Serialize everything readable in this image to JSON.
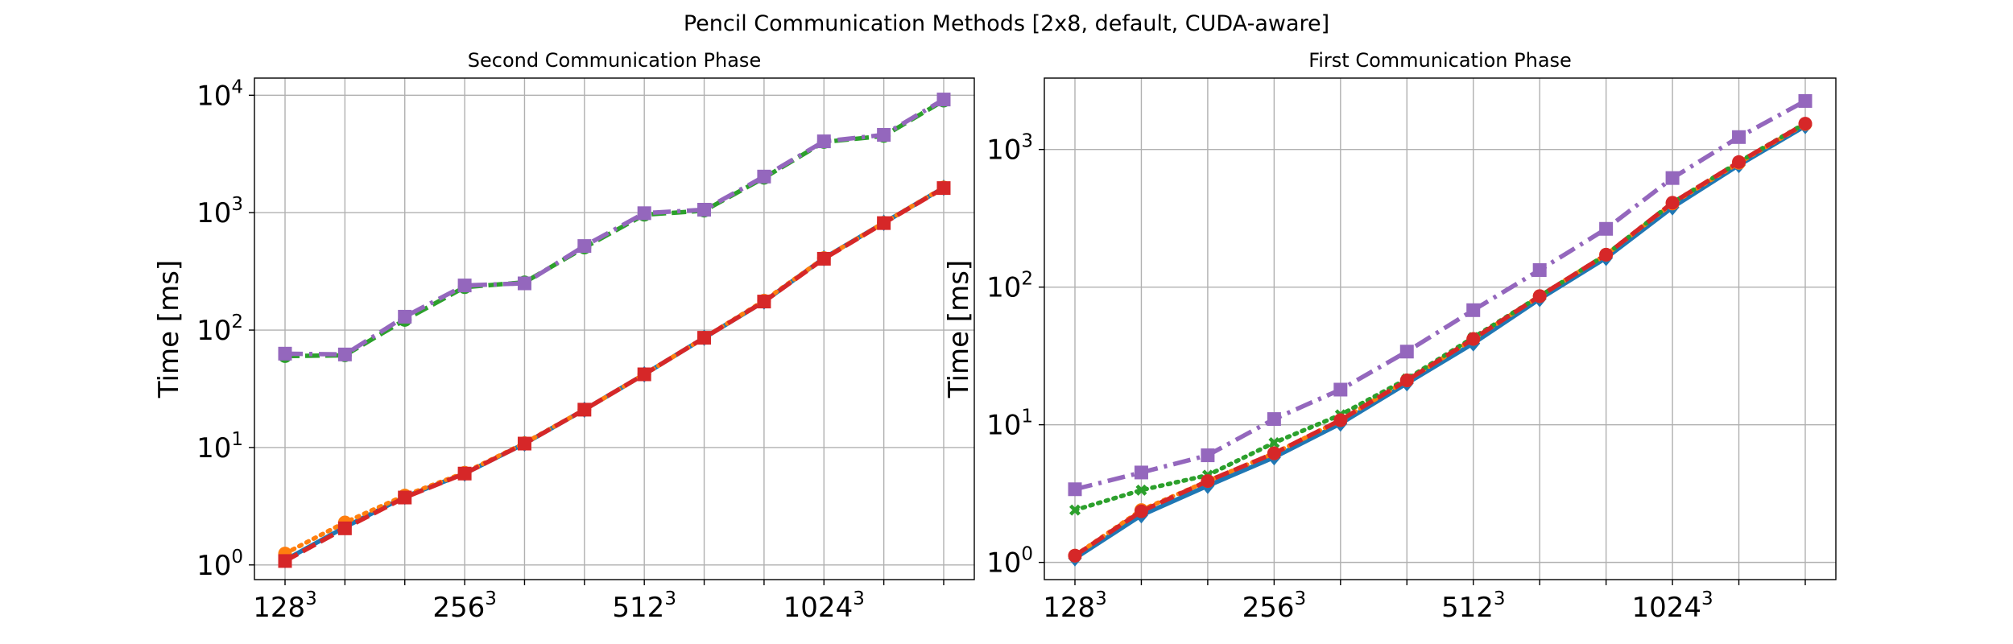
{
  "figure": {
    "title": "Pencil Communication Methods [2x8, default, CUDA-aware]"
  },
  "chart_data": [
    {
      "type": "line",
      "title": "Second Communication Phase",
      "xlabel": "",
      "ylabel": "Time [ms]",
      "yscale": "log",
      "ylim": [
        0.75,
        14000
      ],
      "grid": true,
      "x_index": [
        0,
        1,
        2,
        3,
        4,
        5,
        6,
        7,
        8,
        9,
        10,
        11
      ],
      "xticks": [
        {
          "index": 0,
          "base": "128",
          "exp": "3"
        },
        {
          "index": 3,
          "base": "256",
          "exp": "3"
        },
        {
          "index": 6,
          "base": "512",
          "exp": "3"
        },
        {
          "index": 9,
          "base": "1024",
          "exp": "3"
        }
      ],
      "yticks": [
        {
          "value": 1,
          "base": "10",
          "exp": "0"
        },
        {
          "value": 10,
          "base": "10",
          "exp": "1"
        },
        {
          "value": 100,
          "base": "10",
          "exp": "2"
        },
        {
          "value": 1000,
          "base": "10",
          "exp": "3"
        },
        {
          "value": 10000,
          "base": "10",
          "exp": "4"
        }
      ],
      "series": [
        {
          "color": "#1f77b4",
          "style": "solid",
          "marker": "diamond",
          "values": [
            1.1,
            2.1,
            3.8,
            6.0,
            10.8,
            21,
            42,
            86,
            175,
            410,
            820,
            1630
          ]
        },
        {
          "color": "#ff7f0e",
          "style": "dotted",
          "marker": "circle",
          "values": [
            1.25,
            2.3,
            3.9,
            6.1,
            10.9,
            21,
            42,
            86,
            178,
            410,
            820,
            1640
          ]
        },
        {
          "color": "#2ca02c",
          "style": "dashed",
          "marker": "circle",
          "values": [
            60,
            61,
            122,
            232,
            255,
            505,
            960,
            1040,
            1980,
            4000,
            4500,
            9000
          ]
        },
        {
          "color": "#d62728",
          "style": "dashed",
          "marker": "square",
          "values": [
            1.08,
            2.05,
            3.75,
            6.0,
            10.8,
            21,
            42,
            86,
            175,
            405,
            815,
            1620
          ]
        },
        {
          "color": "#9467bd",
          "style": "dashdot",
          "marker": "square",
          "values": [
            63,
            62,
            130,
            240,
            250,
            520,
            990,
            1060,
            2030,
            4050,
            4600,
            9200
          ]
        }
      ]
    },
    {
      "type": "line",
      "title": "First Communication Phase",
      "xlabel": "",
      "ylabel": "Time [ms]",
      "yscale": "log",
      "ylim": [
        0.75,
        3300
      ],
      "grid": true,
      "x_index": [
        0,
        1,
        2,
        3,
        4,
        5,
        6,
        7,
        8,
        9,
        10,
        11
      ],
      "xticks": [
        {
          "index": 0,
          "base": "128",
          "exp": "3"
        },
        {
          "index": 3,
          "base": "256",
          "exp": "3"
        },
        {
          "index": 6,
          "base": "512",
          "exp": "3"
        },
        {
          "index": 9,
          "base": "1024",
          "exp": "3"
        }
      ],
      "yticks": [
        {
          "value": 1,
          "base": "10",
          "exp": "0"
        },
        {
          "value": 10,
          "base": "10",
          "exp": "1"
        },
        {
          "value": 100,
          "base": "10",
          "exp": "2"
        },
        {
          "value": 1000,
          "base": "10",
          "exp": "3"
        }
      ],
      "series": [
        {
          "color": "#1f77b4",
          "style": "solid",
          "marker": "diamond",
          "values": [
            1.07,
            2.2,
            3.6,
            5.8,
            10.2,
            20,
            39,
            82,
            163,
            380,
            770,
            1480
          ]
        },
        {
          "color": "#ff7f0e",
          "style": "dotted",
          "marker": "circle",
          "values": [
            1.12,
            2.4,
            3.9,
            6.2,
            10.8,
            21,
            42,
            86,
            172,
            405,
            800,
            1530
          ]
        },
        {
          "color": "#2ca02c",
          "style": "dotted",
          "marker": "x",
          "values": [
            2.4,
            3.35,
            4.3,
            7.4,
            11.8,
            21.5,
            43,
            86,
            172,
            410,
            810,
            1550
          ]
        },
        {
          "color": "#d62728",
          "style": "dashed",
          "marker": "circle",
          "values": [
            1.12,
            2.35,
            3.9,
            6.2,
            10.8,
            21,
            42,
            86,
            172,
            410,
            810,
            1540
          ]
        },
        {
          "color": "#9467bd",
          "style": "dashdot",
          "marker": "square",
          "values": [
            3.4,
            4.5,
            6.0,
            11,
            18,
            34,
            68,
            133,
            265,
            620,
            1230,
            2250
          ]
        }
      ]
    }
  ]
}
